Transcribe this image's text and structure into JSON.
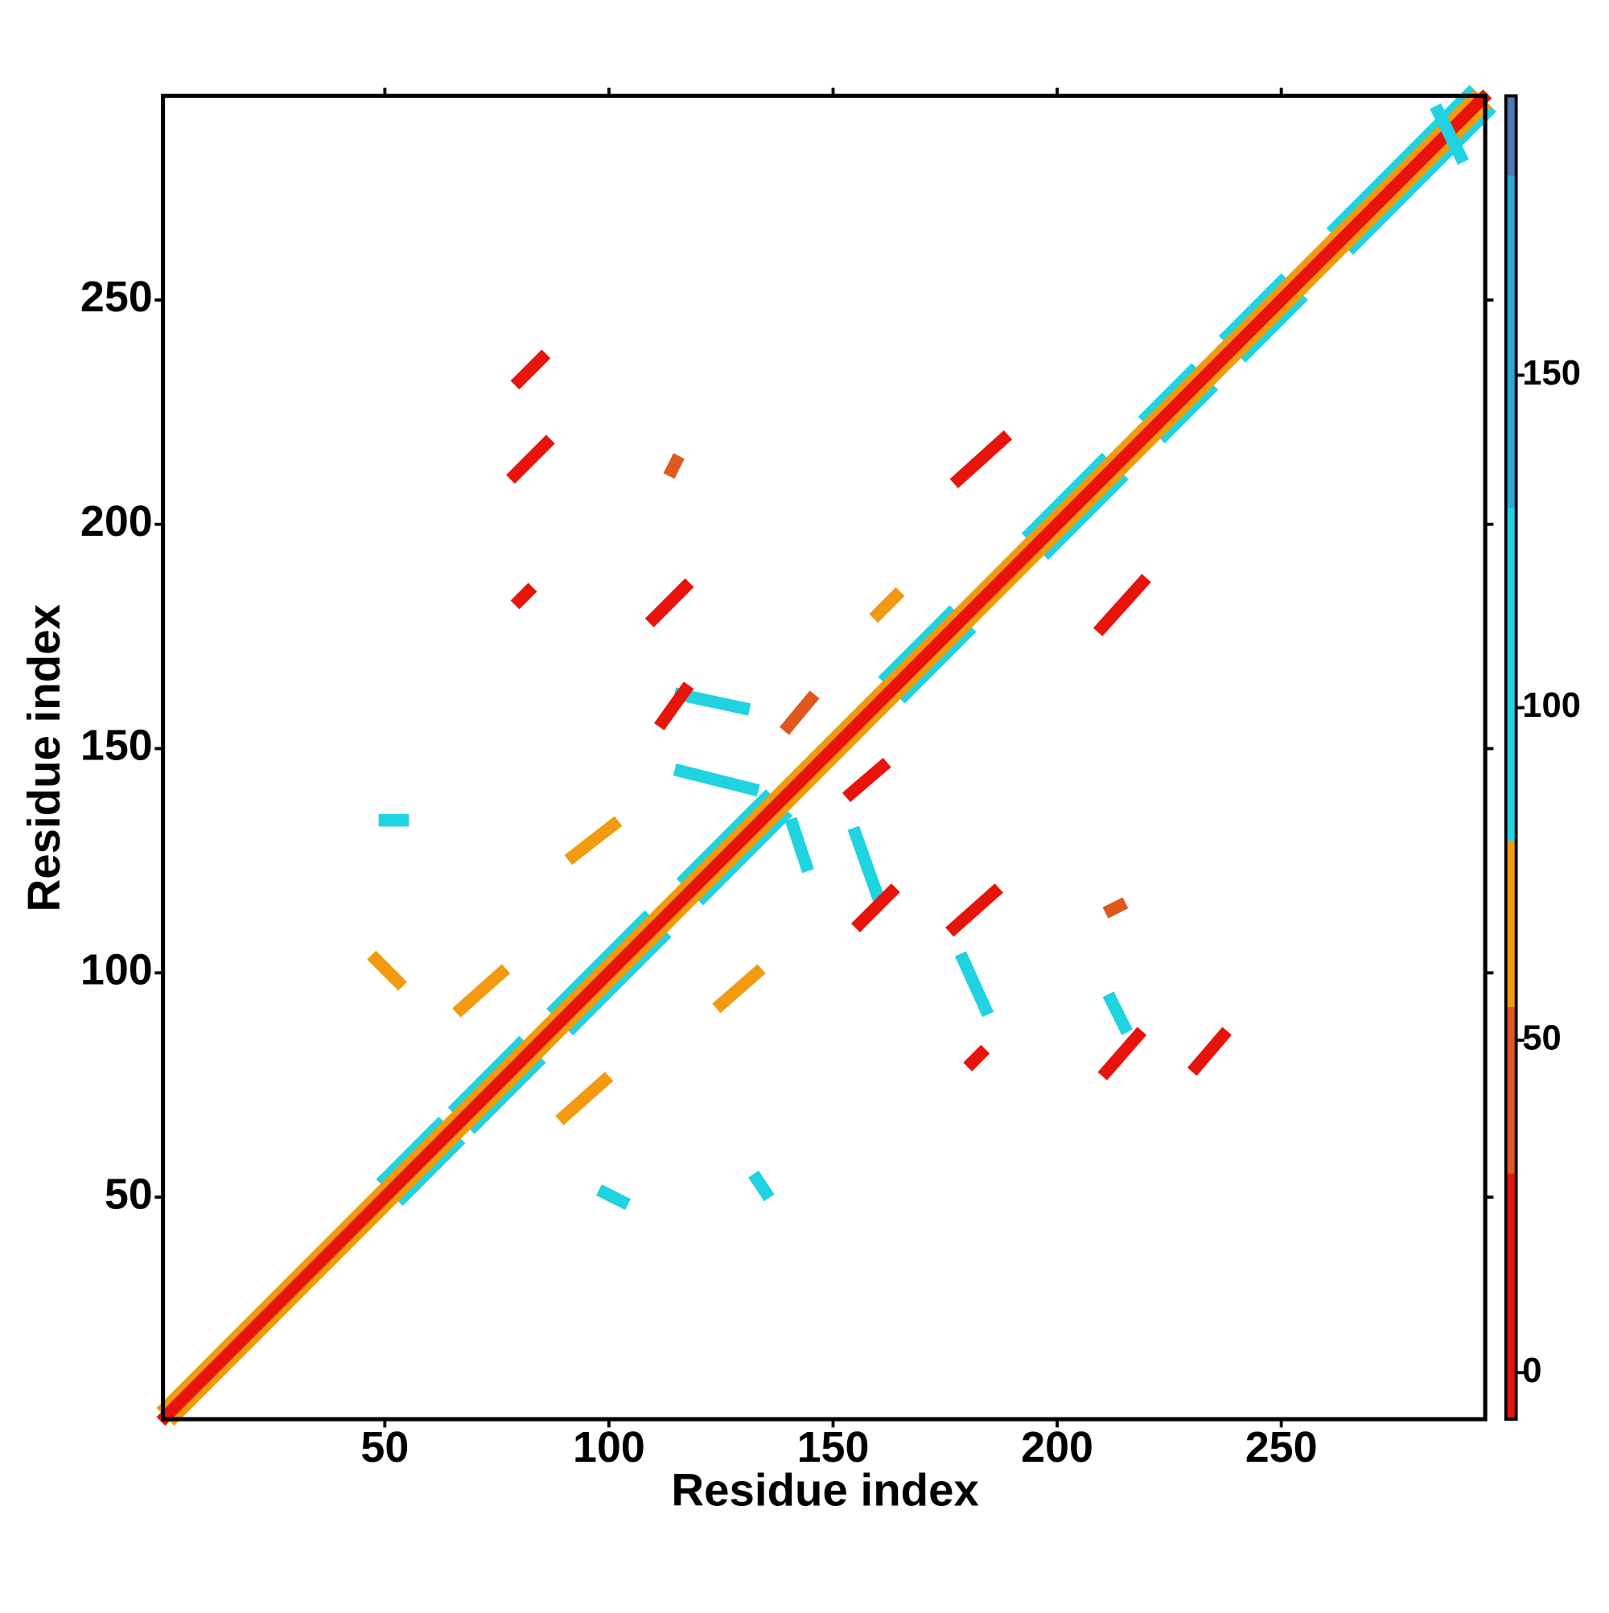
{
  "chart_data": {
    "type": "contact_map",
    "x_label": "Residue index",
    "y_label": "Residue index",
    "xlim": [
      0.5,
      295.5
    ],
    "ylim": [
      0.5,
      295.5
    ],
    "xticks": [
      50,
      100,
      150,
      200,
      250
    ],
    "yticks": [
      50,
      100,
      150,
      200,
      250
    ],
    "colorbar": {
      "clim": [
        -7,
        192
      ],
      "bounds": [
        -7,
        30,
        55,
        80,
        130,
        180,
        192
      ],
      "colors": [
        "#e8140c",
        "#e0581c",
        "#f29a10",
        "#1fd3e0",
        "#2aa9d6",
        "#4a78b8",
        "#ffffff"
      ],
      "ticks": [
        0,
        50,
        100,
        150
      ]
    },
    "segments": [
      {
        "x": [
          50,
          62
        ],
        "y": [
          54,
          66
        ],
        "value": 100
      },
      {
        "x": [
          54,
          66
        ],
        "y": [
          50,
          62
        ],
        "value": 100
      },
      {
        "x": [
          66,
          80
        ],
        "y": [
          70,
          84
        ],
        "value": 100
      },
      {
        "x": [
          70,
          84
        ],
        "y": [
          66,
          80
        ],
        "value": 100
      },
      {
        "x": [
          88,
          108
        ],
        "y": [
          92,
          112
        ],
        "value": 100
      },
      {
        "x": [
          92,
          112
        ],
        "y": [
          88,
          108
        ],
        "value": 100
      },
      {
        "x": [
          117,
          135
        ],
        "y": [
          121,
          139
        ],
        "value": 100
      },
      {
        "x": [
          121,
          139
        ],
        "y": [
          117,
          135
        ],
        "value": 100
      },
      {
        "x": [
          162,
          176
        ],
        "y": [
          166,
          180
        ],
        "value": 100
      },
      {
        "x": [
          166,
          180
        ],
        "y": [
          162,
          176
        ],
        "value": 100
      },
      {
        "x": [
          194,
          210
        ],
        "y": [
          198,
          214
        ],
        "value": 100
      },
      {
        "x": [
          198,
          214
        ],
        "y": [
          194,
          210
        ],
        "value": 100
      },
      {
        "x": [
          220,
          230
        ],
        "y": [
          224,
          234
        ],
        "value": 100
      },
      {
        "x": [
          224,
          234
        ],
        "y": [
          220,
          230
        ],
        "value": 100
      },
      {
        "x": [
          238,
          250
        ],
        "y": [
          242,
          254
        ],
        "value": 100
      },
      {
        "x": [
          242,
          254
        ],
        "y": [
          238,
          250
        ],
        "value": 100
      },
      {
        "x": [
          262,
          292
        ],
        "y": [
          266,
          296
        ],
        "value": 100
      },
      {
        "x": [
          266,
          296
        ],
        "y": [
          262,
          292
        ],
        "value": 100
      },
      {
        "x": [
          1,
          293
        ],
        "y": [
          3,
          295
        ],
        "value": 60
      },
      {
        "x": [
          3,
          295
        ],
        "y": [
          1,
          293
        ],
        "value": 60
      },
      {
        "x": [
          1,
          295
        ],
        "y": [
          1,
          295
        ],
        "value": 5
      },
      {
        "x": [
          116,
          130
        ],
        "y": [
          162,
          159
        ],
        "value": 100
      },
      {
        "x": [
          116,
          132
        ],
        "y": [
          145,
          141
        ],
        "value": 100
      },
      {
        "x": [
          141,
          144
        ],
        "y": [
          133,
          124
        ],
        "value": 100
      },
      {
        "x": [
          155,
          160
        ],
        "y": [
          131,
          117
        ],
        "value": 100
      },
      {
        "x": [
          50,
          54
        ],
        "y": [
          134,
          134
        ],
        "value": 100
      },
      {
        "x": [
          133,
          135
        ],
        "y": [
          54,
          51
        ],
        "value": 100
      },
      {
        "x": [
          99,
          103
        ],
        "y": [
          51,
          49
        ],
        "value": 100
      },
      {
        "x": [
          212,
          215
        ],
        "y": [
          94,
          88
        ],
        "value": 100
      },
      {
        "x": [
          179,
          184
        ],
        "y": [
          103,
          92
        ],
        "value": 100
      },
      {
        "x": [
          285,
          290
        ],
        "y": [
          292,
          282
        ],
        "value": 100
      },
      {
        "x": [
          92,
          101
        ],
        "y": [
          126,
          133
        ],
        "value": 60
      },
      {
        "x": [
          125,
          133
        ],
        "y": [
          93,
          100
        ],
        "value": 60
      },
      {
        "x": [
          67,
          76
        ],
        "y": [
          92,
          100
        ],
        "value": 60
      },
      {
        "x": [
          90,
          99
        ],
        "y": [
          68,
          76
        ],
        "value": 60
      },
      {
        "x": [
          48,
          53
        ],
        "y": [
          103,
          98
        ],
        "value": 60
      },
      {
        "x": [
          160,
          164
        ],
        "y": [
          180,
          184
        ],
        "value": 60
      },
      {
        "x": [
          80,
          85
        ],
        "y": [
          232,
          237
        ],
        "value": 5
      },
      {
        "x": [
          79,
          86
        ],
        "y": [
          211,
          218
        ],
        "value": 5
      },
      {
        "x": [
          110,
          117
        ],
        "y": [
          179,
          186
        ],
        "value": 5
      },
      {
        "x": [
          112,
          117
        ],
        "y": [
          156,
          163
        ],
        "value": 5
      },
      {
        "x": [
          140,
          145
        ],
        "y": [
          155,
          161
        ],
        "value": 40
      },
      {
        "x": [
          154,
          161
        ],
        "y": [
          140,
          146
        ],
        "value": 5
      },
      {
        "x": [
          156,
          163
        ],
        "y": [
          111,
          118
        ],
        "value": 5
      },
      {
        "x": [
          177,
          186
        ],
        "y": [
          110,
          118
        ],
        "value": 5
      },
      {
        "x": [
          178,
          188
        ],
        "y": [
          210,
          219
        ],
        "value": 5
      },
      {
        "x": [
          210,
          219
        ],
        "y": [
          177,
          187
        ],
        "value": 5
      },
      {
        "x": [
          211,
          218
        ],
        "y": [
          78,
          86
        ],
        "value": 5
      },
      {
        "x": [
          231,
          237
        ],
        "y": [
          79,
          86
        ],
        "value": 5
      },
      {
        "x": [
          80,
          82
        ],
        "y": [
          183,
          185
        ],
        "value": 5
      },
      {
        "x": [
          181,
          183
        ],
        "y": [
          80,
          82
        ],
        "value": 5
      },
      {
        "x": [
          114,
          115
        ],
        "y": [
          212,
          214
        ],
        "value": 40
      },
      {
        "x": [
          212,
          214
        ],
        "y": [
          114,
          115
        ],
        "value": 40
      }
    ]
  }
}
